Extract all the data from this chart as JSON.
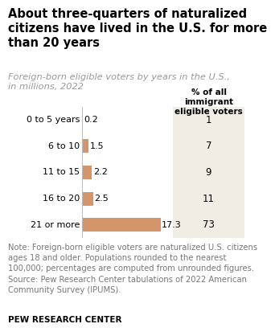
{
  "title_line1": "About three-quarters of naturalized",
  "title_line2": "citizens have lived in the U.S. for more",
  "title_line3": "than 20 years",
  "subtitle_line1": "Foreign-born eligible voters by years in the U.S.,",
  "subtitle_line2": "in millions, 2022",
  "categories": [
    "0 to 5 years",
    "6 to 10",
    "11 to 15",
    "16 to 20",
    "21 or more"
  ],
  "values": [
    0.2,
    1.5,
    2.2,
    2.5,
    17.3
  ],
  "percentages": [
    "1",
    "7",
    "9",
    "11",
    "73"
  ],
  "bar_color": "#d4956a",
  "table_header_line1": "% of all",
  "table_header_line2": "immigrant",
  "table_header_line3": "eligible voters",
  "table_bg": "#f0ede5",
  "note": "Note: Foreign-born eligible voters are naturalized U.S. citizens\nages 18 and older. Populations rounded to the nearest\n100,000; percentages are computed from unrounded figures.\nSource: Pew Research Center tabulations of 2022 American\nCommunity Survey (IPUMS).",
  "footer": "PEW RESEARCH CENTER",
  "bg_color": "#ffffff",
  "text_color": "#000000",
  "subtitle_color": "#999999",
  "note_color": "#777777",
  "title_fontsize": 10.5,
  "subtitle_fontsize": 8.2,
  "bar_label_fontsize": 8.0,
  "cat_fontsize": 8.0,
  "pct_fontsize": 8.5,
  "note_fontsize": 7.2,
  "footer_fontsize": 7.5,
  "table_header_fontsize": 7.5,
  "xlim_max": 19.5,
  "bar_thin_threshold": 0.5
}
